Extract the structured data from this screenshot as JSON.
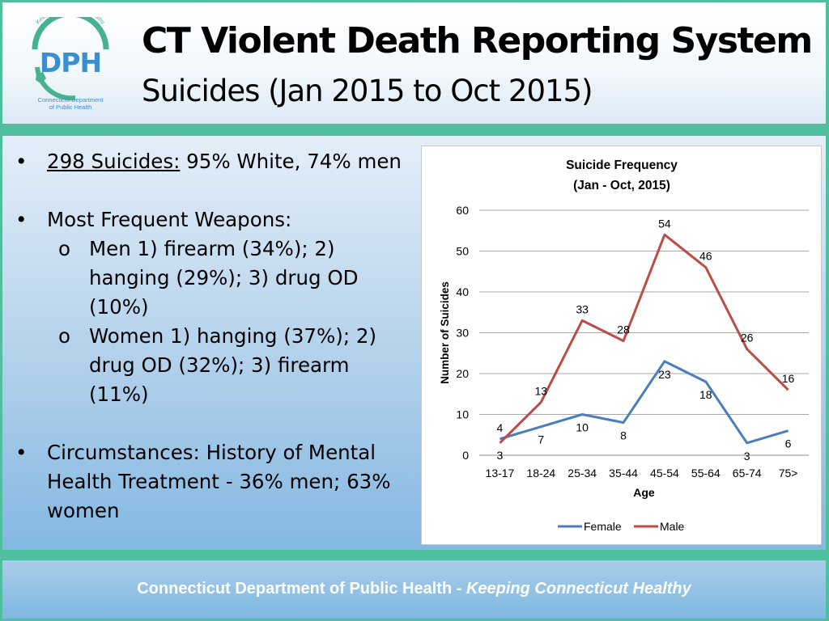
{
  "header": {
    "title": "CT Violent Death Reporting System",
    "subtitle": "Suicides (Jan 2015 to Oct 2015)",
    "logo": {
      "letters": "DPH",
      "tagline": "Keeping Connecticut Healthy",
      "caption_line1": "Connecticut Department",
      "caption_line2": "of Public Health"
    }
  },
  "bullets": {
    "b1_underlined": "298 Suicides:",
    "b1_rest": " 95% White, 74% men",
    "b2": "Most Frequent Weapons:",
    "b2_sub1_line1": "Men 1) firearm (34%); 2)",
    "b2_sub1_line2": "hanging (29%); 3) drug OD",
    "b2_sub1_line3": "(10%)",
    "b2_sub2_line1": "Women 1) hanging (37%); 2)",
    "b2_sub2_line2": "drug OD (32%); 3) firearm",
    "b2_sub2_line3": "(11%)",
    "b3_line1": "Circumstances: History of Mental",
    "b3_line2": "Health Treatment - 36% men; 63%",
    "b3_line3": "women"
  },
  "footer": {
    "org": "Connecticut Department of Public Health",
    "separator": " - ",
    "motto": "Keeping Connecticut Healthy"
  },
  "chart_data": {
    "type": "line",
    "title_line1": "Suicide Frequency",
    "title_line2": "(Jan - Oct, 2015)",
    "xlabel": "Age",
    "ylabel": "Number of Suicides",
    "categories": [
      "13-17",
      "18-24",
      "25-34",
      "35-44",
      "45-54",
      "55-64",
      "65-74",
      "75>"
    ],
    "ylim": [
      0,
      60
    ],
    "yticks": [
      0,
      10,
      20,
      30,
      40,
      50,
      60
    ],
    "grid": true,
    "legend_position": "bottom",
    "series": [
      {
        "name": "Female",
        "color": "#4a7ebb",
        "values": [
          4,
          7,
          10,
          8,
          23,
          18,
          3,
          6
        ]
      },
      {
        "name": "Male",
        "color": "#be4b48",
        "values": [
          3,
          13,
          33,
          28,
          54,
          46,
          26,
          16
        ]
      }
    ]
  },
  "colors": {
    "background_teal": "#4fbf9f",
    "logo_blue": "#3a8fd0",
    "logo_green": "#47b28f",
    "footer_text": "#ffffff"
  }
}
